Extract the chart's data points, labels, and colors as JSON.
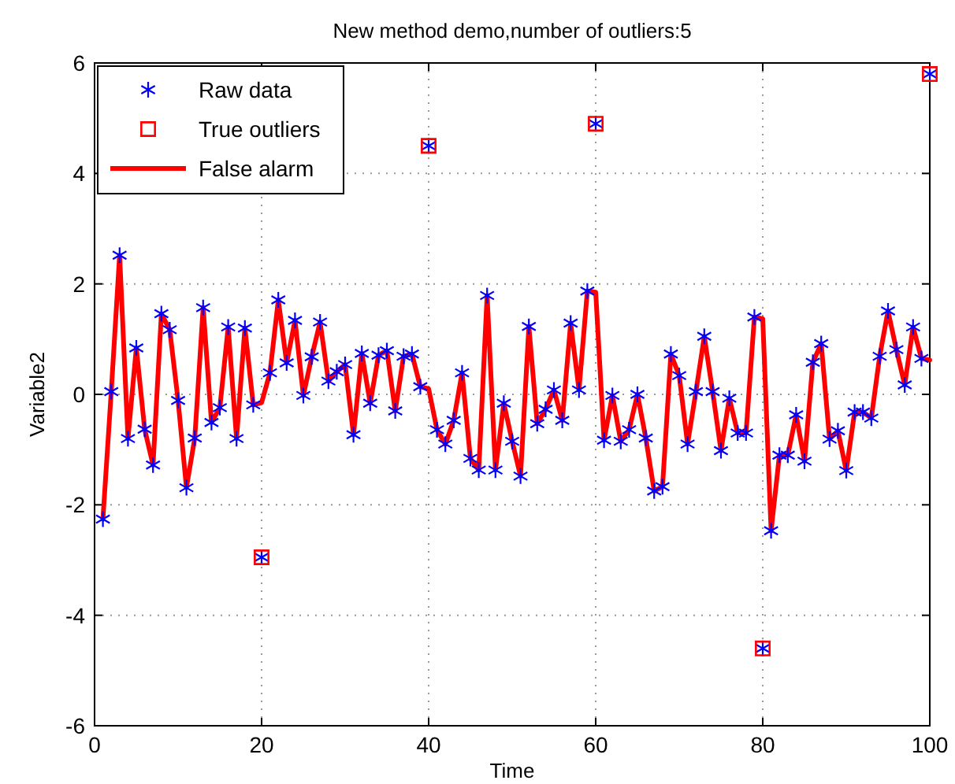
{
  "chart_data": {
    "type": "scatter",
    "title": "New method demo,number of outliers:5",
    "xlabel": "Time",
    "ylabel": "Variable2",
    "xlim": [
      0,
      100
    ],
    "xticks": [
      0,
      20,
      40,
      60,
      80,
      100
    ],
    "ylim": [
      -6,
      6
    ],
    "yticks": [
      -6,
      -4,
      -2,
      0,
      2,
      4,
      6
    ],
    "grid": true,
    "legend": "top left",
    "series": [
      {
        "name": "Raw data",
        "type": "scatter",
        "marker": "cross",
        "color": "#0000ff",
        "x": [
          1,
          2,
          3,
          4,
          5,
          6,
          7,
          8,
          9,
          10,
          11,
          12,
          13,
          14,
          15,
          16,
          17,
          18,
          19,
          20,
          21,
          22,
          23,
          24,
          25,
          26,
          27,
          28,
          29,
          30,
          31,
          32,
          33,
          34,
          35,
          36,
          37,
          38,
          39,
          40,
          41,
          42,
          43,
          44,
          45,
          46,
          47,
          48,
          49,
          50,
          51,
          52,
          53,
          54,
          55,
          56,
          57,
          58,
          59,
          60,
          61,
          62,
          63,
          64,
          65,
          66,
          67,
          68,
          69,
          70,
          71,
          72,
          73,
          74,
          75,
          76,
          77,
          78,
          79,
          80,
          81,
          82,
          83,
          84,
          85,
          86,
          87,
          88,
          89,
          90,
          91,
          92,
          93,
          94,
          95,
          96,
          97,
          98,
          99,
          100
        ],
        "values": [
          -2.26,
          0.05,
          2.52,
          -0.8,
          0.84,
          -0.63,
          -1.28,
          1.46,
          1.17,
          -0.11,
          -1.69,
          -0.79,
          1.57,
          -0.51,
          -0.24,
          1.22,
          -0.8,
          1.2,
          -0.19,
          -2.95,
          0.39,
          1.71,
          0.57,
          1.34,
          -0.02,
          0.68,
          1.31,
          0.24,
          0.41,
          0.54,
          -0.73,
          0.74,
          -0.16,
          0.71,
          0.79,
          -0.3,
          0.69,
          0.73,
          0.14,
          4.5,
          -0.64,
          -0.9,
          -0.47,
          0.39,
          -1.16,
          -1.37,
          1.79,
          -1.37,
          -0.16,
          -0.85,
          -1.48,
          1.23,
          -0.53,
          -0.27,
          0.08,
          -0.47,
          1.29,
          0.08,
          1.87,
          4.9,
          -0.83,
          -0.02,
          -0.85,
          -0.64,
          0.0,
          -0.79,
          -1.75,
          -1.67,
          0.73,
          0.34,
          -0.9,
          0.05,
          1.05,
          0.05,
          -1.02,
          -0.07,
          -0.7,
          -0.7,
          1.4,
          -4.6,
          -2.47,
          -1.1,
          -1.1,
          -0.37,
          -1.21,
          0.58,
          0.92,
          -0.81,
          -0.66,
          -1.38,
          -0.32,
          -0.32,
          -0.43,
          0.69,
          1.51,
          0.81,
          0.17,
          1.22,
          0.65,
          5.8
        ]
      },
      {
        "name": "True outliers",
        "type": "scatter",
        "marker": "square",
        "color": "#ff0000",
        "x": [
          20,
          40,
          60,
          80,
          100
        ],
        "values": [
          -2.95,
          4.5,
          4.9,
          -4.6,
          5.8
        ]
      },
      {
        "name": "False alarm",
        "type": "line",
        "marker": "none",
        "line_style": "solid",
        "color": "#ff0000",
        "x": [
          1,
          2,
          3,
          4,
          5,
          6,
          7,
          8,
          9,
          10,
          11,
          12,
          13,
          14,
          15,
          16,
          17,
          18,
          19,
          20,
          21,
          22,
          23,
          24,
          25,
          26,
          27,
          28,
          29,
          30,
          31,
          32,
          33,
          34,
          35,
          36,
          37,
          38,
          39,
          40,
          41,
          42,
          43,
          44,
          45,
          46,
          47,
          48,
          49,
          50,
          51,
          52,
          53,
          54,
          55,
          56,
          57,
          58,
          59,
          60,
          61,
          62,
          63,
          64,
          65,
          66,
          67,
          68,
          69,
          70,
          71,
          72,
          73,
          74,
          75,
          76,
          77,
          78,
          79,
          80,
          81,
          82,
          83,
          84,
          85,
          86,
          87,
          88,
          89,
          90,
          91,
          92,
          93,
          94,
          95,
          96,
          97,
          98,
          99,
          100
        ],
        "values": [
          -2.26,
          0.05,
          2.52,
          -0.8,
          0.84,
          -0.63,
          -1.28,
          1.46,
          1.17,
          -0.11,
          -1.69,
          -0.79,
          1.57,
          -0.51,
          -0.24,
          1.22,
          -0.8,
          1.2,
          -0.19,
          -0.15,
          0.39,
          1.71,
          0.57,
          1.34,
          -0.02,
          0.68,
          1.31,
          0.24,
          0.41,
          0.54,
          -0.73,
          0.74,
          -0.16,
          0.71,
          0.79,
          -0.3,
          0.69,
          0.73,
          0.14,
          0.1,
          -0.64,
          -0.9,
          -0.47,
          0.39,
          -1.16,
          -1.37,
          1.79,
          -1.37,
          -0.16,
          -0.85,
          -1.48,
          1.23,
          -0.53,
          -0.27,
          0.08,
          -0.47,
          1.29,
          0.08,
          1.87,
          1.85,
          -0.83,
          -0.02,
          -0.85,
          -0.64,
          0.0,
          -0.79,
          -1.75,
          -1.67,
          0.73,
          0.34,
          -0.9,
          0.05,
          1.05,
          0.05,
          -1.02,
          -0.07,
          -0.7,
          -0.7,
          1.4,
          1.37,
          -2.47,
          -1.1,
          -1.1,
          -0.37,
          -1.21,
          0.58,
          0.92,
          -0.81,
          -0.66,
          -1.38,
          -0.32,
          -0.32,
          -0.43,
          0.69,
          1.51,
          0.81,
          0.17,
          1.22,
          0.65,
          0.62
        ]
      }
    ]
  }
}
